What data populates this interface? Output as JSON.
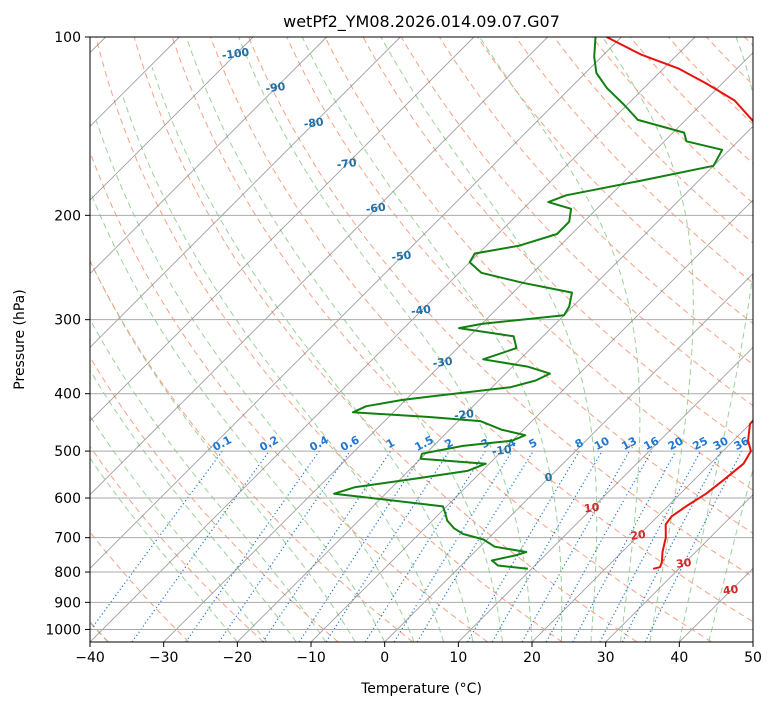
{
  "colors": {
    "temperature": "#e8120c",
    "dewpoint": "#118011",
    "isotherm": "#7f7f7f",
    "isobar": "#a9a9a9",
    "dry_adiabat": "#f7a184",
    "moist_adiabat": "#9bd29b",
    "mixing_ratio": "#1f77d4",
    "label_dark_blue": "#1f6fa8",
    "label_red": "#d62728",
    "outer_curve": "#d2b48c"
  },
  "chart_data": {
    "type": "line",
    "chart_kind": "skew-t log-p diagram",
    "title": "wetPf2_YM08.2026.014.09.07.G07",
    "xlabel": "Temperature (°C)",
    "ylabel": "Pressure (hPa)",
    "xlim": [
      -40,
      50
    ],
    "ylim_hpa": [
      1050,
      100
    ],
    "y_scale": "log",
    "grid": true,
    "x_ticks": [
      "−40",
      "−30",
      "−20",
      "−10",
      "0",
      "10",
      "20",
      "30",
      "40",
      "50"
    ],
    "x_tick_values": [
      -40,
      -30,
      -20,
      -10,
      0,
      10,
      20,
      30,
      40,
      50
    ],
    "y_ticks": [
      "100",
      "200",
      "300",
      "400",
      "500",
      "600",
      "700",
      "800",
      "900",
      "1000"
    ],
    "y_tick_values": [
      100,
      200,
      300,
      400,
      500,
      600,
      700,
      800,
      900,
      1000
    ],
    "series": [
      {
        "key": "temperature",
        "points": [
          [
            790,
            26.5
          ],
          [
            785,
            27.2
          ],
          [
            770,
            26.8
          ],
          [
            740,
            25.5
          ],
          [
            700,
            24.0
          ],
          [
            665,
            22.2
          ],
          [
            645,
            21.9
          ],
          [
            620,
            22.5
          ],
          [
            590,
            23.5
          ],
          [
            560,
            24.0
          ],
          [
            525,
            24.5
          ],
          [
            500,
            23.8
          ],
          [
            480,
            22.0
          ],
          [
            450,
            20.0
          ],
          [
            430,
            19.8
          ],
          [
            420,
            20.5
          ],
          [
            405,
            19.2
          ],
          [
            370,
            16.8
          ],
          [
            340,
            15.0
          ],
          [
            315,
            12.8
          ],
          [
            290,
            10.5
          ],
          [
            270,
            7.5
          ],
          [
            250,
            5.0
          ],
          [
            225,
            2.0
          ],
          [
            200,
            -1.0
          ],
          [
            180,
            -6.0
          ],
          [
            165,
            -11.0
          ],
          [
            150,
            -16.0
          ],
          [
            138,
            -21.0
          ],
          [
            128,
            -26.0
          ],
          [
            120,
            -32.0
          ],
          [
            113,
            -38.0
          ],
          [
            107,
            -45.0
          ],
          [
            100,
            -52.0
          ]
        ]
      },
      {
        "key": "dewpoint",
        "points": [
          [
            790,
            9.5
          ],
          [
            780,
            5.0
          ],
          [
            765,
            3.5
          ],
          [
            750,
            6.0
          ],
          [
            740,
            7.0
          ],
          [
            725,
            2.0
          ],
          [
            705,
            -0.5
          ],
          [
            690,
            -4.0
          ],
          [
            675,
            -6.0
          ],
          [
            655,
            -8.0
          ],
          [
            640,
            -9.0
          ],
          [
            620,
            -10.5
          ],
          [
            590,
            -27.0
          ],
          [
            575,
            -25.0
          ],
          [
            555,
            -17.5
          ],
          [
            540,
            -12.0
          ],
          [
            525,
            -10.5
          ],
          [
            515,
            -20.0
          ],
          [
            505,
            -20.5
          ],
          [
            490,
            -16.0
          ],
          [
            480,
            -10.0
          ],
          [
            470,
            -9.0
          ],
          [
            460,
            -13.0
          ],
          [
            445,
            -17.0
          ],
          [
            438,
            -24.5
          ],
          [
            430,
            -35.5
          ],
          [
            420,
            -34.5
          ],
          [
            410,
            -30.5
          ],
          [
            405,
            -27.5
          ],
          [
            390,
            -17.5
          ],
          [
            380,
            -15.0
          ],
          [
            370,
            -14.0
          ],
          [
            360,
            -18.0
          ],
          [
            350,
            -25.0
          ],
          [
            335,
            -22.0
          ],
          [
            320,
            -24.0
          ],
          [
            310,
            -32.5
          ],
          [
            305,
            -30.0
          ],
          [
            295,
            -20.0
          ],
          [
            285,
            -20.5
          ],
          [
            270,
            -22.0
          ],
          [
            260,
            -30.0
          ],
          [
            250,
            -37.0
          ],
          [
            240,
            -40.0
          ],
          [
            232,
            -40.5
          ],
          [
            225,
            -35.5
          ],
          [
            215,
            -32.0
          ],
          [
            205,
            -32.0
          ],
          [
            195,
            -33.5
          ],
          [
            190,
            -37.5
          ],
          [
            185,
            -36.0
          ],
          [
            175,
            -28.0
          ],
          [
            165,
            -20.0
          ],
          [
            155,
            -21.0
          ],
          [
            150,
            -27.0
          ],
          [
            145,
            -28.5
          ],
          [
            138,
            -36.5
          ],
          [
            130,
            -40.5
          ],
          [
            122,
            -45.0
          ],
          [
            115,
            -48.5
          ],
          [
            108,
            -51.0
          ],
          [
            100,
            -53.5
          ]
        ]
      }
    ],
    "isotherm_labels": [
      "-100",
      "-90",
      "-80",
      "-70",
      "-60",
      "-50",
      "-40",
      "-30",
      "-20",
      "-10",
      "0",
      "10",
      "20",
      "30",
      "40"
    ],
    "mixing_ratio_labels": [
      "0.1",
      "0.2",
      "0.4",
      "0.6",
      "1",
      "1.5",
      "2",
      "3",
      "4",
      "5",
      "8",
      "10",
      "13",
      "16",
      "20",
      "25",
      "30",
      "36"
    ]
  }
}
